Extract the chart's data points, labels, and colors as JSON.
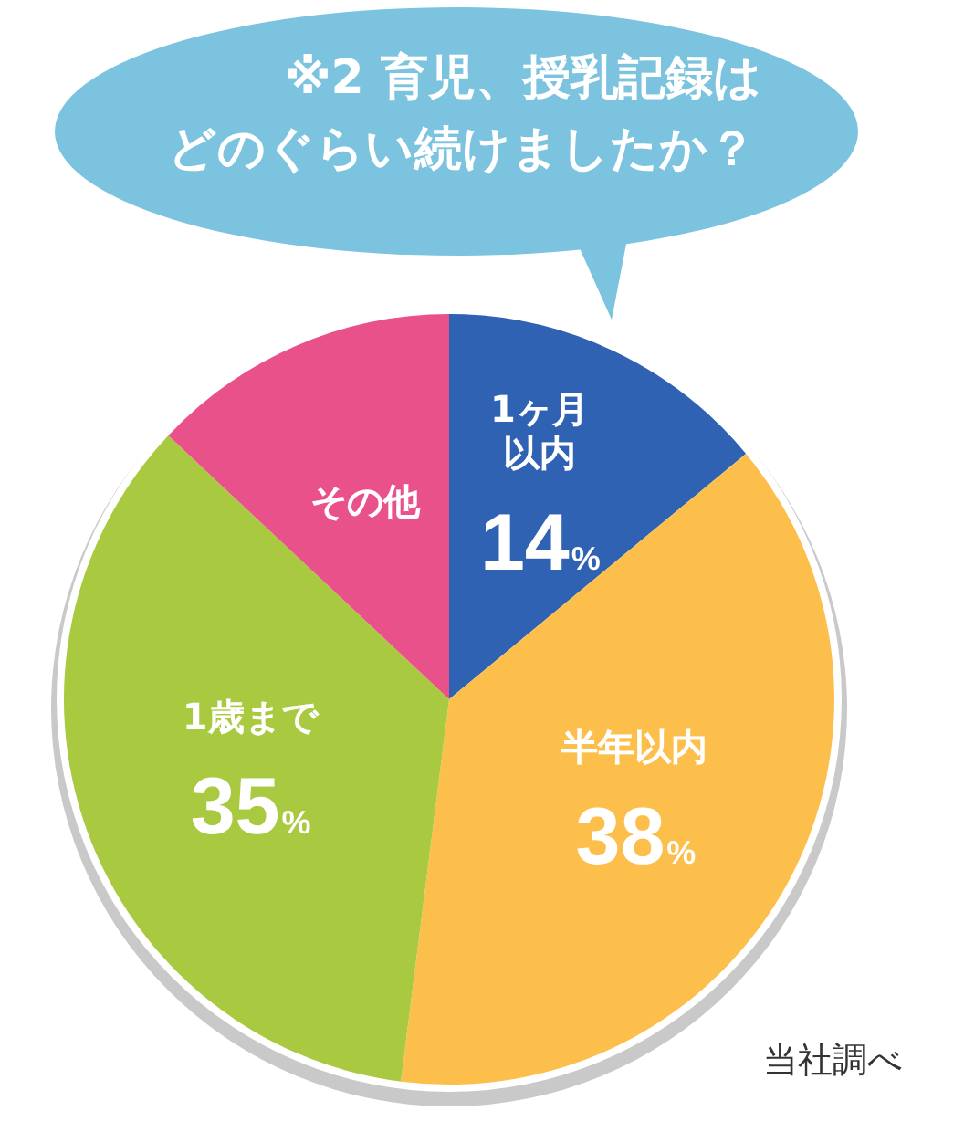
{
  "chart_data": {
    "type": "pie",
    "title": "※2 育児、授乳記録はどのぐらい続けましたか？",
    "categories": [
      "1ヶ月以内",
      "半年以内",
      "1歳まで",
      "その他"
    ],
    "values": [
      14,
      38,
      35,
      13
    ],
    "colors": [
      "#2f62b3",
      "#fdbf4b",
      "#a9c940",
      "#e9518b"
    ],
    "value_labels": [
      "14%",
      "38%",
      "35%",
      null
    ],
    "legend": false,
    "annotations": [
      "当社調べ"
    ]
  }
}
